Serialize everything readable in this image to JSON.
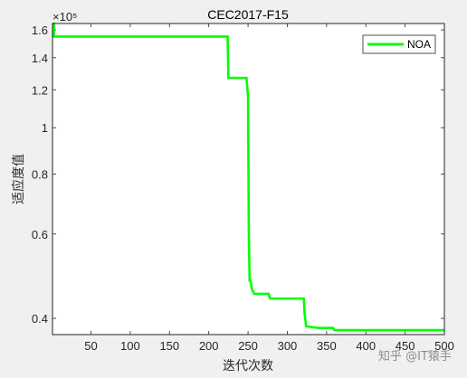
{
  "chart_data": {
    "type": "line",
    "title": "CEC2017-F15",
    "xlabel": "迭代次数",
    "ylabel": "适应度值",
    "xlim": [
      1,
      500
    ],
    "ylim": [
      37000,
      165000
    ],
    "yscale": "log",
    "y_exponent_label": "×10⁵",
    "xticks": [
      50,
      100,
      150,
      200,
      250,
      300,
      350,
      400,
      450,
      500
    ],
    "xtick_labels": [
      "50",
      "100",
      "150",
      "200",
      "250",
      "300",
      "350",
      "400",
      "450",
      "500"
    ],
    "yticks": [
      40000,
      60000,
      80000,
      100000,
      120000,
      140000,
      160000
    ],
    "ytick_labels": [
      "0.4",
      "0.6",
      "0.8",
      "1",
      "1.2",
      "1.4",
      "1.6"
    ],
    "legend_position": "top-right",
    "grid": false,
    "series": [
      {
        "name": "NOA",
        "color": "#00ff00",
        "points": [
          [
            1,
            165000
          ],
          [
            3,
            165000
          ],
          [
            3,
            155000
          ],
          [
            224,
            155000
          ],
          [
            225,
            127000
          ],
          [
            248,
            127000
          ],
          [
            250,
            116000
          ],
          [
            251,
            60000
          ],
          [
            252,
            48000
          ],
          [
            253,
            48000
          ],
          [
            255,
            46000
          ],
          [
            258,
            45000
          ],
          [
            276,
            45000
          ],
          [
            278,
            44000
          ],
          [
            321,
            44000
          ],
          [
            322,
            41000
          ],
          [
            324,
            38500
          ],
          [
            340,
            38200
          ],
          [
            358,
            38200
          ],
          [
            360,
            37800
          ],
          [
            500,
            37800
          ]
        ]
      }
    ]
  },
  "watermark": "知乎 @IT猿手"
}
